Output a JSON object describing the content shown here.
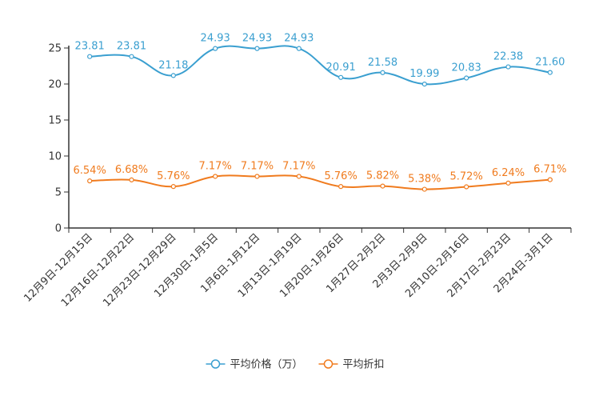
{
  "chart_data": {
    "type": "line",
    "categories": [
      "12月9日-12月15日",
      "12月16日-12月22日",
      "12月23日-12月29日",
      "12月30日-1月5日",
      "1月6日-1月12日",
      "1月13日-1月19日",
      "1月20日-1月26日",
      "1月27日-2月2日",
      "2月3日-2月9日",
      "2月10日-2月16日",
      "2月17日-2月23日",
      "2月24日-3月1日"
    ],
    "series": [
      {
        "name": "平均价格（万）",
        "color": "#3a9fd0",
        "values": [
          23.81,
          23.81,
          21.18,
          24.93,
          24.93,
          24.93,
          20.91,
          21.58,
          19.99,
          20.83,
          22.38,
          21.6
        ],
        "labels": [
          "23.81",
          "23.81",
          "21.18",
          "24.93",
          "24.93",
          "24.93",
          "20.91",
          "21.58",
          "19.99",
          "20.83",
          "22.38",
          "21.60"
        ]
      },
      {
        "name": "平均折扣",
        "color": "#f07b1e",
        "values": [
          6.54,
          6.68,
          5.76,
          7.17,
          7.17,
          7.17,
          5.76,
          5.82,
          5.38,
          5.72,
          6.24,
          6.71
        ],
        "labels": [
          "6.54%",
          "6.68%",
          "5.76%",
          "7.17%",
          "7.17%",
          "7.17%",
          "5.76%",
          "5.82%",
          "5.38%",
          "5.72%",
          "6.24%",
          "6.71%"
        ]
      }
    ],
    "yticks": [
      "0",
      "5",
      "10",
      "15",
      "20",
      "25"
    ],
    "ylim": [
      0,
      25
    ],
    "title": "",
    "xlabel": "",
    "ylabel": "",
    "legend_position": "bottom-center",
    "grid": false
  }
}
